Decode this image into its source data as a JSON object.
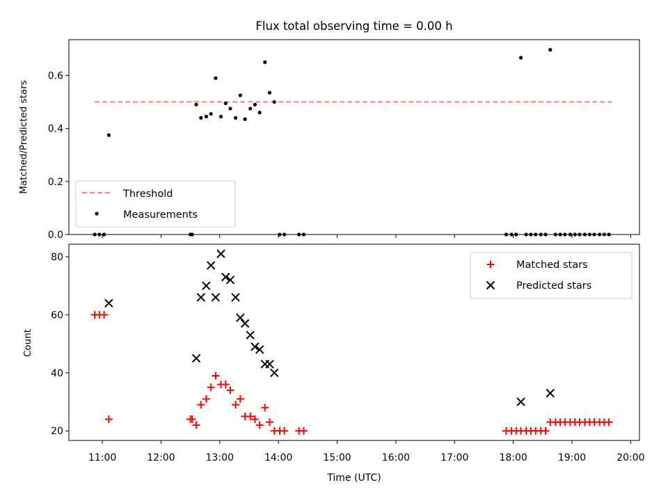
{
  "chart_data": [
    {
      "type": "scatter",
      "title": "Flux total observing time = 0.00 h",
      "xlabel": "",
      "ylabel": "Matched/Predicted stars",
      "xlim": [
        10.43,
        20.15
      ],
      "ylim": [
        0.0,
        0.735
      ],
      "yticks": [
        0.0,
        0.2,
        0.4,
        0.6
      ],
      "ytick_labels": [
        "0.0",
        "0.2",
        "0.4",
        "0.6"
      ],
      "threshold": {
        "name": "Threshold",
        "value": 0.5,
        "x_range": [
          10.87,
          19.68
        ],
        "color": "#ff7f7f"
      },
      "series": [
        {
          "name": "Measurements",
          "color": "#000000",
          "x": [
            10.87,
            10.95,
            11.03,
            11.11,
            12.5,
            12.53,
            12.6,
            12.68,
            12.77,
            12.85,
            12.93,
            13.02,
            13.1,
            13.18,
            13.27,
            13.35,
            13.43,
            13.52,
            13.6,
            13.68,
            13.77,
            13.85,
            13.93,
            14.02,
            14.1,
            14.35,
            14.43,
            17.88,
            17.97,
            18.05,
            18.13,
            18.22,
            18.3,
            18.38,
            18.47,
            18.55,
            18.63,
            18.72,
            18.8,
            18.88,
            18.97,
            19.05,
            19.13,
            19.22,
            19.3,
            19.38,
            19.47,
            19.55,
            19.63
          ],
          "y": [
            0.0,
            0.0,
            0.0,
            0.375,
            0.0,
            0.0,
            0.49,
            0.44,
            0.445,
            0.455,
            0.59,
            0.445,
            0.495,
            0.475,
            0.44,
            0.525,
            0.435,
            0.475,
            0.49,
            0.46,
            0.65,
            0.535,
            0.5,
            0.0,
            0.0,
            0.0,
            0.0,
            0.0,
            0.0,
            0.0,
            0.667,
            0.0,
            0.0,
            0.0,
            0.0,
            0.0,
            0.697,
            0.0,
            0.0,
            0.0,
            0.0,
            0.0,
            0.0,
            0.0,
            0.0,
            0.0,
            0.0,
            0.0,
            0.0
          ]
        }
      ],
      "legend": {
        "placement": "lower-left",
        "entries": [
          "Threshold",
          "Measurements"
        ]
      }
    },
    {
      "type": "scatter",
      "title": "",
      "xlabel": "Time (UTC)",
      "ylabel": "Count",
      "xlim": [
        10.43,
        20.15
      ],
      "ylim": [
        16.7,
        84.3
      ],
      "xticks": [
        11,
        12,
        13,
        14,
        15,
        16,
        17,
        18,
        19,
        20
      ],
      "xtick_labels": [
        "11:00",
        "12:00",
        "13:00",
        "14:00",
        "15:00",
        "16:00",
        "17:00",
        "18:00",
        "19:00",
        "20:00"
      ],
      "yticks": [
        20,
        40,
        60,
        80
      ],
      "ytick_labels": [
        "20",
        "40",
        "60",
        "80"
      ],
      "series": [
        {
          "name": "Matched stars",
          "marker": "plus",
          "color": "#ff0000",
          "x": [
            10.87,
            10.95,
            11.03,
            11.11,
            12.5,
            12.53,
            12.6,
            12.68,
            12.77,
            12.85,
            12.93,
            13.02,
            13.1,
            13.18,
            13.27,
            13.35,
            13.43,
            13.52,
            13.6,
            13.68,
            13.77,
            13.85,
            13.93,
            14.02,
            14.1,
            14.35,
            14.43,
            17.88,
            17.97,
            18.05,
            18.13,
            18.22,
            18.3,
            18.38,
            18.47,
            18.55,
            18.63,
            18.72,
            18.8,
            18.88,
            18.97,
            19.05,
            19.13,
            19.22,
            19.3,
            19.38,
            19.47,
            19.55,
            19.63
          ],
          "y": [
            60,
            60,
            60,
            24,
            24,
            24,
            22,
            29,
            31,
            35,
            39,
            36,
            36,
            34,
            29,
            31,
            25,
            25,
            24,
            22,
            28,
            23,
            20,
            20,
            20,
            20,
            20,
            20,
            20,
            20,
            20,
            20,
            20,
            20,
            20,
            20,
            23,
            23,
            23,
            23,
            23,
            23,
            23,
            23,
            23,
            23,
            23,
            23,
            23
          ]
        },
        {
          "name": "Predicted stars",
          "marker": "x",
          "color": "#000000",
          "x": [
            11.11,
            12.6,
            12.68,
            12.77,
            12.85,
            12.93,
            13.02,
            13.1,
            13.18,
            13.27,
            13.35,
            13.43,
            13.52,
            13.6,
            13.68,
            13.77,
            13.85,
            13.93,
            18.13,
            18.63
          ],
          "y": [
            64,
            45,
            66,
            70,
            77,
            66,
            81,
            73,
            72,
            66,
            59,
            57,
            53,
            49,
            48,
            43,
            43,
            40,
            30,
            33
          ]
        }
      ],
      "legend": {
        "placement": "upper-right",
        "entries": [
          "Matched stars",
          "Predicted stars"
        ]
      }
    }
  ]
}
